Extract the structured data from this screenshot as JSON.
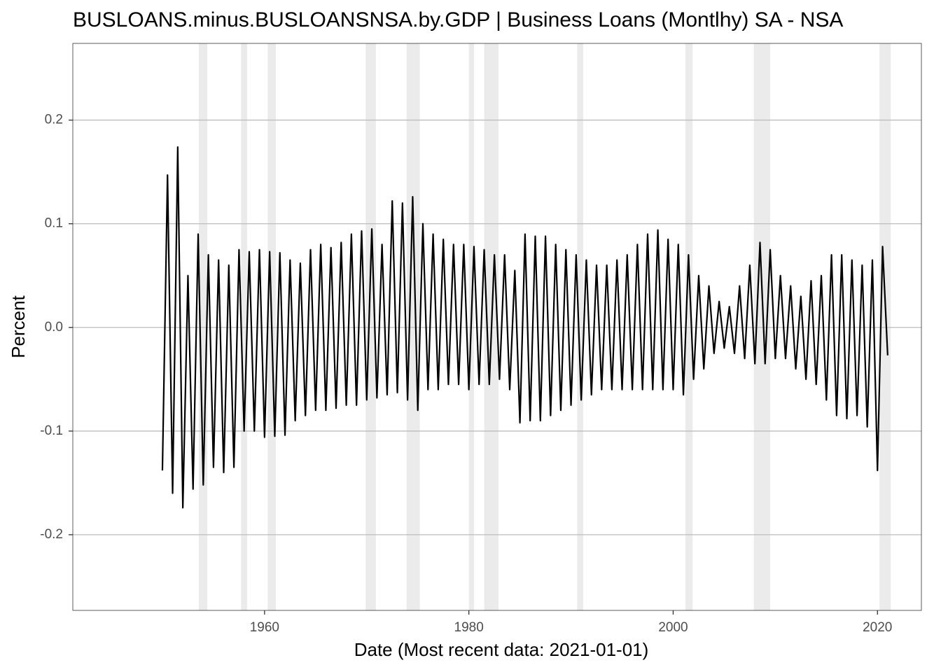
{
  "chart_data": {
    "type": "line",
    "title": "BUSLOANS.minus.BUSLOANSNSA.by.GDP | Business Loans (Montlhy) SA - NSA",
    "x_label": "Date (Most recent data: 2021-01-01)",
    "y_label": "Percent",
    "xlim": [
      1941.23,
      2024.3
    ],
    "ylim": [
      -0.273,
      0.274
    ],
    "xticks": [
      1960,
      1980,
      2000,
      2020
    ],
    "yticks": [
      -0.2,
      -0.1,
      {
        "value": 0,
        "label": "0.0"
      },
      0.1,
      0.2
    ],
    "grid": true,
    "recessions": [
      [
        1953.56,
        1954.4
      ],
      [
        1957.7,
        1958.3
      ],
      [
        1960.3,
        1961.1
      ],
      [
        1969.9,
        1970.9
      ],
      [
        1973.9,
        1975.2
      ],
      [
        1980.0,
        1980.5
      ],
      [
        1981.5,
        1982.9
      ],
      [
        1990.6,
        1991.2
      ],
      [
        2001.2,
        2001.9
      ],
      [
        2007.9,
        2009.5
      ],
      [
        2020.2,
        2021.3
      ]
    ],
    "recession_color": "#ebebeb",
    "series": [
      {
        "name": "BUSLOANS.minus.BUSLOANSNSA.by.GDP",
        "color": "#000000",
        "x": [
          1950.0,
          1950.5,
          1951.0,
          1951.5,
          1952.0,
          1952.5,
          1953.0,
          1953.5,
          1954.0,
          1954.5,
          1955.0,
          1955.5,
          1956.0,
          1956.5,
          1957.0,
          1957.5,
          1958.0,
          1958.5,
          1959.0,
          1959.5,
          1960.0,
          1960.5,
          1961.0,
          1961.5,
          1962.0,
          1962.5,
          1963.0,
          1963.5,
          1964.0,
          1964.5,
          1965.0,
          1965.5,
          1966.0,
          1966.5,
          1967.0,
          1967.5,
          1968.0,
          1968.5,
          1969.0,
          1969.5,
          1970.0,
          1970.5,
          1971.0,
          1971.5,
          1972.0,
          1972.5,
          1973.0,
          1973.5,
          1974.0,
          1974.5,
          1975.0,
          1975.5,
          1976.0,
          1976.5,
          1977.0,
          1977.5,
          1978.0,
          1978.5,
          1979.0,
          1979.5,
          1980.0,
          1980.5,
          1981.0,
          1981.5,
          1982.0,
          1982.5,
          1983.0,
          1983.5,
          1984.0,
          1984.5,
          1985.0,
          1985.5,
          1986.0,
          1986.5,
          1987.0,
          1987.5,
          1988.0,
          1988.5,
          1989.0,
          1989.5,
          1990.0,
          1990.5,
          1991.0,
          1991.5,
          1992.0,
          1992.5,
          1993.0,
          1993.5,
          1994.0,
          1994.5,
          1995.0,
          1995.5,
          1996.0,
          1996.5,
          1997.0,
          1997.5,
          1998.0,
          1998.5,
          1999.0,
          1999.5,
          2000.0,
          2000.5,
          2001.0,
          2001.5,
          2002.0,
          2002.5,
          2003.0,
          2003.5,
          2004.0,
          2004.5,
          2005.0,
          2005.5,
          2006.0,
          2006.5,
          2007.0,
          2007.5,
          2008.0,
          2008.5,
          2009.0,
          2009.5,
          2010.0,
          2010.5,
          2011.0,
          2011.5,
          2012.0,
          2012.5,
          2013.0,
          2013.5,
          2014.0,
          2014.5,
          2015.0,
          2015.5,
          2016.0,
          2016.5,
          2017.0,
          2017.5,
          2018.0,
          2018.5,
          2019.0,
          2019.5,
          2020.0,
          2020.5,
          2021.0
        ],
        "values": [
          -0.138,
          0.147,
          -0.16,
          0.174,
          -0.174,
          0.05,
          -0.156,
          0.09,
          -0.152,
          0.07,
          -0.135,
          0.065,
          -0.14,
          0.06,
          -0.135,
          0.075,
          -0.1,
          0.073,
          -0.1,
          0.075,
          -0.106,
          0.073,
          -0.105,
          0.072,
          -0.104,
          0.065,
          -0.09,
          0.062,
          -0.085,
          0.075,
          -0.08,
          0.08,
          -0.08,
          0.077,
          -0.078,
          0.082,
          -0.075,
          0.09,
          -0.075,
          0.093,
          -0.07,
          0.095,
          -0.068,
          0.08,
          -0.065,
          0.122,
          -0.063,
          0.12,
          -0.07,
          0.126,
          -0.08,
          0.1,
          -0.06,
          0.09,
          -0.06,
          0.085,
          -0.055,
          0.08,
          -0.055,
          0.08,
          -0.06,
          0.078,
          -0.055,
          0.075,
          -0.055,
          0.07,
          -0.05,
          0.07,
          -0.06,
          0.055,
          -0.092,
          0.09,
          -0.09,
          0.088,
          -0.09,
          0.088,
          -0.085,
          0.08,
          -0.08,
          0.075,
          -0.075,
          0.07,
          -0.07,
          0.065,
          -0.065,
          0.06,
          -0.06,
          0.06,
          -0.06,
          0.065,
          -0.06,
          0.07,
          -0.06,
          0.08,
          -0.06,
          0.09,
          -0.06,
          0.094,
          -0.06,
          0.085,
          -0.06,
          0.08,
          -0.065,
          0.07,
          -0.05,
          0.05,
          -0.04,
          0.04,
          -0.025,
          0.025,
          -0.02,
          0.02,
          -0.025,
          0.04,
          -0.03,
          0.06,
          -0.035,
          0.082,
          -0.035,
          0.075,
          -0.03,
          0.05,
          -0.03,
          0.04,
          -0.04,
          0.03,
          -0.05,
          0.045,
          -0.055,
          0.05,
          -0.07,
          0.07,
          -0.085,
          0.07,
          -0.088,
          0.065,
          -0.085,
          0.06,
          -0.096,
          0.065,
          -0.138,
          0.078,
          -0.027
        ]
      }
    ]
  }
}
